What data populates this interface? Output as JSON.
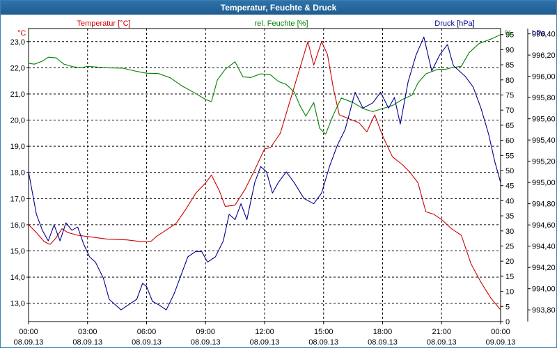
{
  "window": {
    "title": "Temperatur, Feuchte & Druck"
  },
  "colors": {
    "temperature": "#cc0000",
    "humidity": "#008000",
    "pressure": "#00008b",
    "title_bg": "#1e5c90",
    "grid": "#000000"
  },
  "chart_data": {
    "type": "line",
    "title": "Temperatur, Feuchte & Druck",
    "grid": true,
    "x": {
      "range": [
        "08.09.13 00:00",
        "09.09.13 00:00"
      ],
      "ticks": [
        {
          "time": "00:00",
          "date": "08.09.13"
        },
        {
          "time": "03:00",
          "date": "08.09.13"
        },
        {
          "time": "06:00",
          "date": "08.09.13"
        },
        {
          "time": "09:00",
          "date": "08.09.13"
        },
        {
          "time": "12:00",
          "date": "08.09.13"
        },
        {
          "time": "15:00",
          "date": "08.09.13"
        },
        {
          "time": "18:00",
          "date": "08.09.13"
        },
        {
          "time": "21:00",
          "date": "08.09.13"
        },
        {
          "time": "00:00",
          "date": "09.09.13"
        }
      ]
    },
    "axes": {
      "temperature": {
        "label": "Temperatur [°C]",
        "unit": "°C",
        "range": [
          12.3,
          23.5
        ],
        "ticks": [
          "13,0",
          "14,0",
          "15,0",
          "16,0",
          "17,0",
          "18,0",
          "19,0",
          "20,0",
          "21,0",
          "22,0",
          "23,0"
        ]
      },
      "humidity": {
        "label": "rel. Feuchte [%]",
        "unit": "%",
        "range": [
          0,
          97
        ],
        "ticks": [
          "0",
          "5",
          "10",
          "15",
          "20",
          "25",
          "30",
          "35",
          "40",
          "45",
          "50",
          "55",
          "60",
          "65",
          "70",
          "75",
          "80",
          "85",
          "90",
          "95"
        ]
      },
      "pressure": {
        "label": "Druck [hPa]",
        "unit": "hPa",
        "range": [
          993.69,
          996.45
        ],
        "ticks": [
          "993,80",
          "994,00",
          "994,20",
          "994,40",
          "994,60",
          "994,80",
          "995,00",
          "995,20",
          "995,40",
          "995,60",
          "995,80",
          "996,00",
          "996,20",
          "996,40"
        ]
      }
    },
    "series": [
      {
        "name": "Temperatur [°C]",
        "axis": "temperature",
        "points": [
          [
            0,
            16.0
          ],
          [
            0.4,
            15.7
          ],
          [
            0.8,
            15.35
          ],
          [
            1.1,
            15.25
          ],
          [
            1.4,
            15.5
          ],
          [
            1.7,
            15.85
          ],
          [
            2.0,
            15.7
          ],
          [
            2.5,
            15.6
          ],
          [
            3.0,
            15.55
          ],
          [
            4.0,
            15.45
          ],
          [
            5.0,
            15.42
          ],
          [
            5.8,
            15.35
          ],
          [
            6.2,
            15.35
          ],
          [
            6.5,
            15.55
          ],
          [
            7.0,
            15.8
          ],
          [
            7.5,
            16.05
          ],
          [
            8.0,
            16.6
          ],
          [
            8.5,
            17.2
          ],
          [
            9.0,
            17.6
          ],
          [
            9.3,
            17.9
          ],
          [
            9.7,
            17.3
          ],
          [
            10.0,
            16.7
          ],
          [
            10.5,
            16.75
          ],
          [
            11.0,
            17.35
          ],
          [
            11.5,
            18.1
          ],
          [
            12.0,
            18.9
          ],
          [
            12.3,
            18.95
          ],
          [
            12.8,
            19.5
          ],
          [
            13.2,
            20.5
          ],
          [
            13.6,
            21.5
          ],
          [
            14.0,
            22.5
          ],
          [
            14.2,
            23.0
          ],
          [
            14.5,
            22.1
          ],
          [
            14.9,
            23.0
          ],
          [
            15.2,
            22.5
          ],
          [
            15.5,
            21.2
          ],
          [
            15.8,
            20.2
          ],
          [
            16.3,
            20.05
          ],
          [
            16.8,
            19.9
          ],
          [
            17.2,
            19.55
          ],
          [
            17.6,
            20.2
          ],
          [
            18.0,
            19.4
          ],
          [
            18.5,
            18.6
          ],
          [
            19.0,
            18.3
          ],
          [
            19.4,
            18.0
          ],
          [
            19.8,
            17.6
          ],
          [
            20.2,
            16.5
          ],
          [
            20.6,
            16.4
          ],
          [
            21.0,
            16.2
          ],
          [
            21.5,
            15.85
          ],
          [
            22.0,
            15.6
          ],
          [
            22.5,
            14.5
          ],
          [
            23.0,
            13.8
          ],
          [
            23.5,
            13.2
          ],
          [
            24.0,
            12.75
          ]
        ]
      },
      {
        "name": "rel. Feuchte [%]",
        "axis": "humidity",
        "points": [
          [
            0,
            85.5
          ],
          [
            0.3,
            85.2
          ],
          [
            0.7,
            86.2
          ],
          [
            1.0,
            87.5
          ],
          [
            1.4,
            87.3
          ],
          [
            1.8,
            85.2
          ],
          [
            2.3,
            84.3
          ],
          [
            2.7,
            84.0
          ],
          [
            3.0,
            84.5
          ],
          [
            4.0,
            84.0
          ],
          [
            4.8,
            83.9
          ],
          [
            5.5,
            82.8
          ],
          [
            6.0,
            82.2
          ],
          [
            6.6,
            82.1
          ],
          [
            7.2,
            80.7
          ],
          [
            7.8,
            78.0
          ],
          [
            8.5,
            75.5
          ],
          [
            9.0,
            73.5
          ],
          [
            9.3,
            72.8
          ],
          [
            9.6,
            80.0
          ],
          [
            10.0,
            83.5
          ],
          [
            10.5,
            86.0
          ],
          [
            10.9,
            81.0
          ],
          [
            11.3,
            80.8
          ],
          [
            11.8,
            82.0
          ],
          [
            12.3,
            81.7
          ],
          [
            12.7,
            79.5
          ],
          [
            13.1,
            78.5
          ],
          [
            13.5,
            76.0
          ],
          [
            13.8,
            71.5
          ],
          [
            14.1,
            68.0
          ],
          [
            14.5,
            72.5
          ],
          [
            14.8,
            64.0
          ],
          [
            15.1,
            62.0
          ],
          [
            15.5,
            68.5
          ],
          [
            15.9,
            74.0
          ],
          [
            16.5,
            72.5
          ],
          [
            17.0,
            70.5
          ],
          [
            17.5,
            69.5
          ],
          [
            18.0,
            70.5
          ],
          [
            18.5,
            71.5
          ],
          [
            19.0,
            73.5
          ],
          [
            19.5,
            75.0
          ],
          [
            19.8,
            79.0
          ],
          [
            20.2,
            82.0
          ],
          [
            20.8,
            83.5
          ],
          [
            21.2,
            83.5
          ],
          [
            21.5,
            84.0
          ],
          [
            22.0,
            84.5
          ],
          [
            22.4,
            89.0
          ],
          [
            22.9,
            92.0
          ],
          [
            23.5,
            93.5
          ],
          [
            24.0,
            95.0
          ]
        ]
      },
      {
        "name": "Druck [hPa]",
        "axis": "pressure",
        "points": [
          [
            0,
            995.1
          ],
          [
            0.4,
            994.7
          ],
          [
            0.7,
            994.55
          ],
          [
            1.0,
            994.45
          ],
          [
            1.3,
            994.6
          ],
          [
            1.6,
            994.45
          ],
          [
            1.9,
            994.62
          ],
          [
            2.2,
            994.55
          ],
          [
            2.5,
            994.58
          ],
          [
            2.8,
            994.42
          ],
          [
            3.1,
            994.3
          ],
          [
            3.4,
            994.25
          ],
          [
            3.8,
            994.1
          ],
          [
            4.1,
            993.9
          ],
          [
            4.4,
            993.85
          ],
          [
            4.7,
            993.8
          ],
          [
            5.1,
            993.85
          ],
          [
            5.5,
            993.9
          ],
          [
            5.8,
            994.05
          ],
          [
            6.0,
            994.02
          ],
          [
            6.3,
            993.88
          ],
          [
            6.6,
            993.85
          ],
          [
            7.0,
            993.8
          ],
          [
            7.4,
            993.95
          ],
          [
            7.7,
            994.1
          ],
          [
            8.1,
            994.3
          ],
          [
            8.5,
            994.35
          ],
          [
            8.8,
            994.35
          ],
          [
            9.1,
            994.25
          ],
          [
            9.5,
            994.3
          ],
          [
            9.9,
            994.45
          ],
          [
            10.2,
            994.7
          ],
          [
            10.5,
            994.65
          ],
          [
            10.8,
            994.8
          ],
          [
            11.1,
            994.65
          ],
          [
            11.5,
            995.0
          ],
          [
            11.8,
            995.15
          ],
          [
            12.1,
            995.1
          ],
          [
            12.4,
            994.9
          ],
          [
            12.7,
            995.0
          ],
          [
            13.1,
            995.1
          ],
          [
            13.5,
            995.0
          ],
          [
            14.0,
            994.85
          ],
          [
            14.5,
            994.8
          ],
          [
            14.9,
            994.9
          ],
          [
            15.3,
            995.15
          ],
          [
            15.7,
            995.35
          ],
          [
            16.1,
            995.5
          ],
          [
            16.6,
            995.85
          ],
          [
            17.0,
            995.7
          ],
          [
            17.5,
            995.75
          ],
          [
            17.9,
            995.85
          ],
          [
            18.3,
            995.7
          ],
          [
            18.6,
            995.8
          ],
          [
            18.9,
            995.55
          ],
          [
            19.3,
            995.95
          ],
          [
            19.7,
            996.2
          ],
          [
            20.1,
            996.37
          ],
          [
            20.5,
            996.05
          ],
          [
            20.9,
            996.2
          ],
          [
            21.3,
            996.3
          ],
          [
            21.6,
            996.1
          ],
          [
            21.9,
            996.05
          ],
          [
            22.2,
            996.0
          ],
          [
            22.6,
            995.9
          ],
          [
            23.0,
            995.7
          ],
          [
            23.4,
            995.45
          ],
          [
            23.7,
            995.2
          ],
          [
            24.0,
            995.0
          ]
        ]
      }
    ]
  }
}
